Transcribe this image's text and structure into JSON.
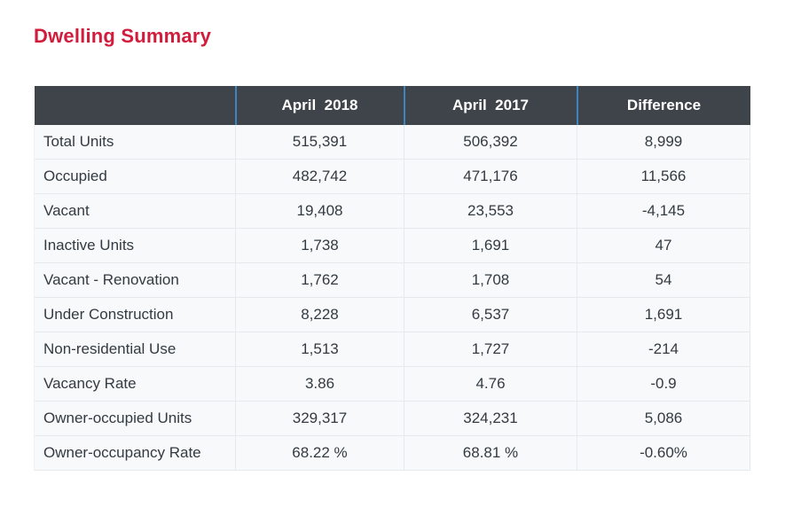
{
  "title": "Dwelling Summary",
  "colors": {
    "title_red": "#d21c3c",
    "header_bg": "#3f444b",
    "header_text": "#ffffff",
    "header_separator_blue": "#3e85c0",
    "row_bg": "#f7f9fa",
    "row_border": "#e6eaed",
    "body_text": "#333a41"
  },
  "table": {
    "headers": [
      "",
      "April  2018",
      "April  2017",
      "Difference"
    ],
    "rows": [
      {
        "label": "Total Units",
        "apr_2018": "515,391",
        "apr_2017": "506,392",
        "difference": "8,999"
      },
      {
        "label": "Occupied",
        "apr_2018": "482,742",
        "apr_2017": "471,176",
        "difference": "11,566"
      },
      {
        "label": "Vacant",
        "apr_2018": "19,408",
        "apr_2017": "23,553",
        "difference": "-4,145"
      },
      {
        "label": "Inactive Units",
        "apr_2018": "1,738",
        "apr_2017": "1,691",
        "difference": "47"
      },
      {
        "label": "Vacant - Renovation",
        "apr_2018": "1,762",
        "apr_2017": "1,708",
        "difference": "54"
      },
      {
        "label": "Under Construction",
        "apr_2018": "8,228",
        "apr_2017": "6,537",
        "difference": "1,691"
      },
      {
        "label": "Non-residential Use",
        "apr_2018": "1,513",
        "apr_2017": "1,727",
        "difference": "-214"
      },
      {
        "label": "Vacancy Rate",
        "apr_2018": "3.86",
        "apr_2017": "4.76",
        "difference": "-0.9"
      },
      {
        "label": "Owner-occupied Units",
        "apr_2018": "329,317",
        "apr_2017": "324,231",
        "difference": "5,086"
      },
      {
        "label": "Owner-occupancy Rate",
        "apr_2018": "68.22 %",
        "apr_2017": "68.81 %",
        "difference": "-0.60%"
      }
    ]
  }
}
